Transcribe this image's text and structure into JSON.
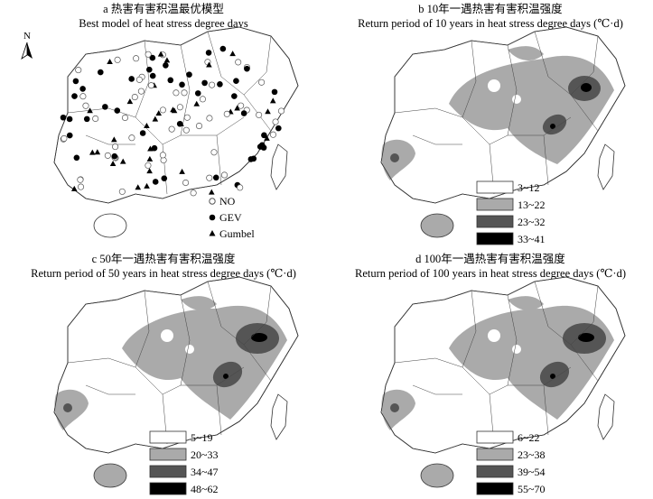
{
  "north_label": "N",
  "panels": [
    {
      "title_cn": "a 热害有害积温最优模型",
      "title_en": "Best model of heat stress degree days",
      "legend": [
        "NO",
        "GEV",
        "Gumbel"
      ]
    },
    {
      "title_cn": "b 10年一遇热害有害积温强度",
      "title_en": "Return period of 10 years in heat stress degree days (℃·d)",
      "legend": [
        "3~12",
        "13~22",
        "23~32",
        "33~41"
      ]
    },
    {
      "title_cn": "c 50年一遇热害有害积温强度",
      "title_en": "Return period of 50 years in heat stress degree days (℃·d)",
      "legend": [
        "5~19",
        "20~33",
        "34~47",
        "48~62"
      ]
    },
    {
      "title_cn": "d 100年一遇热害有害积温强度",
      "title_en": "Return period of 100 years in heat stress degree days (℃·d)",
      "legend": [
        "6~22",
        "23~38",
        "39~54",
        "55~70"
      ]
    }
  ]
}
